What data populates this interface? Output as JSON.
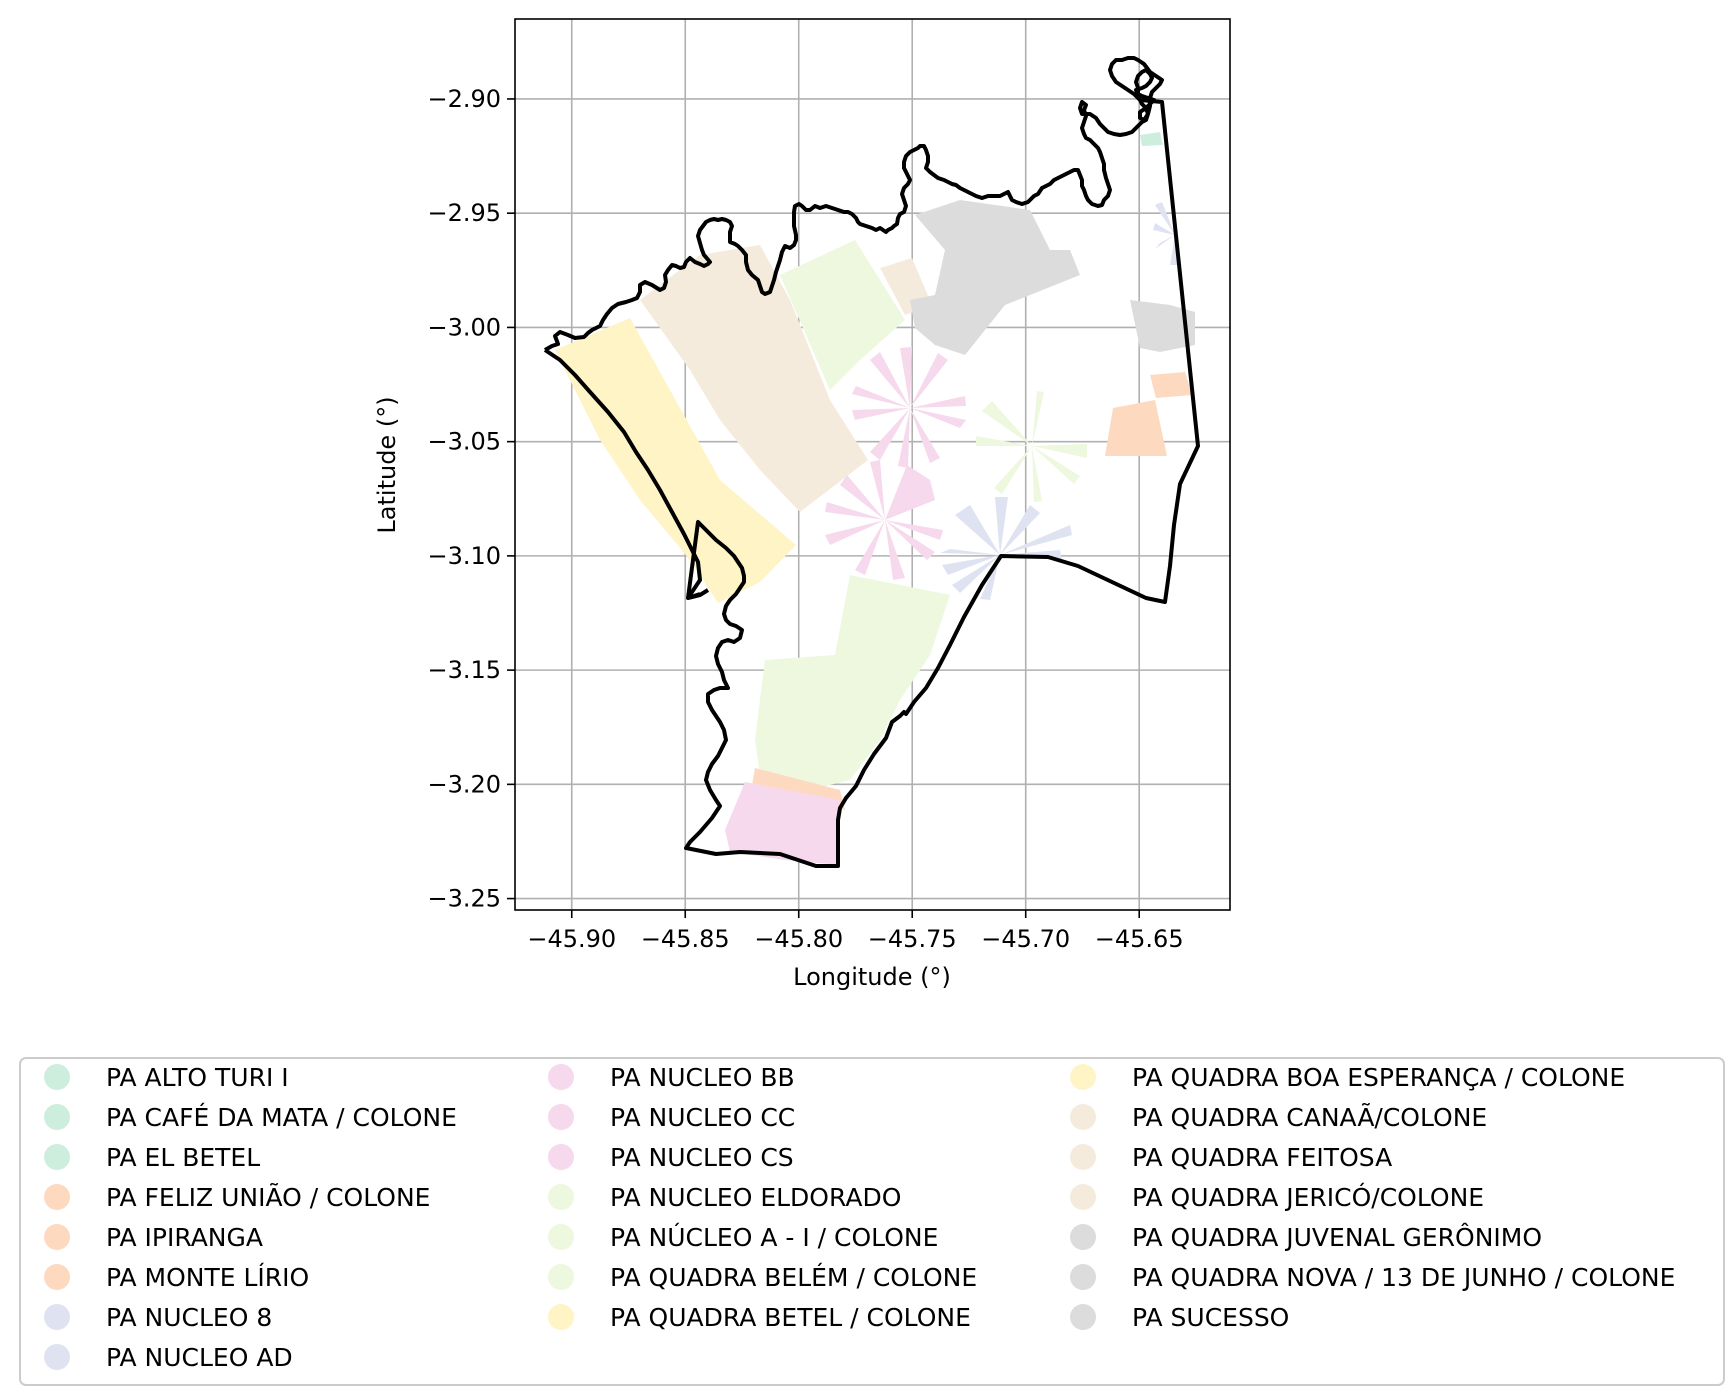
{
  "axes": {
    "xlabel": "Longitude (°)",
    "ylabel": "Latitude (°)",
    "xlim": [
      -45.925,
      -45.61
    ],
    "ylim": [
      -3.255,
      -2.865
    ],
    "xticks": [
      {
        "value": -45.9,
        "label": "−45.90"
      },
      {
        "value": -45.85,
        "label": "−45.85"
      },
      {
        "value": -45.8,
        "label": "−45.80"
      },
      {
        "value": -45.75,
        "label": "−45.75"
      },
      {
        "value": -45.7,
        "label": "−45.70"
      },
      {
        "value": -45.65,
        "label": "−45.65"
      }
    ],
    "yticks": [
      {
        "value": -2.9,
        "label": "−2.90"
      },
      {
        "value": -2.95,
        "label": "−2.95"
      },
      {
        "value": -3.0,
        "label": "−3.00"
      },
      {
        "value": -3.05,
        "label": "−3.05"
      },
      {
        "value": -3.1,
        "label": "−3.10"
      },
      {
        "value": -3.15,
        "label": "−3.15"
      },
      {
        "value": -3.2,
        "label": "−3.20"
      },
      {
        "value": -3.25,
        "label": "−3.25"
      }
    ],
    "grid": true
  },
  "legend": {
    "placement": "below plot",
    "columns": 3,
    "items": [
      {
        "label": "PA ALTO TURI I",
        "color": "#cdeedd"
      },
      {
        "label": "PA CAFÉ DA MATA / COLONE",
        "color": "#cdeedd"
      },
      {
        "label": "PA EL BETEL",
        "color": "#cdeedd"
      },
      {
        "label": "PA FELIZ UNIÃO / COLONE",
        "color": "#fdd9bf"
      },
      {
        "label": "PA IPIRANGA",
        "color": "#fdd9bf"
      },
      {
        "label": "PA MONTE  LÍRIO",
        "color": "#fdd9bf"
      },
      {
        "label": "PA NUCLEO 8",
        "color": "#dfe3f1"
      },
      {
        "label": "PA NUCLEO AD",
        "color": "#dfe3f1"
      },
      {
        "label": "PA NUCLEO BB",
        "color": "#f6d9ec"
      },
      {
        "label": "PA NUCLEO CC",
        "color": "#f6d9ec"
      },
      {
        "label": "PA NUCLEO CS",
        "color": "#f6d9ec"
      },
      {
        "label": "PA NUCLEO ELDORADO",
        "color": "#edf8de"
      },
      {
        "label": "PA NÚCLEO A - I  / COLONE",
        "color": "#edf8de"
      },
      {
        "label": "PA QUADRA BELÉM / COLONE",
        "color": "#edf8de"
      },
      {
        "label": "PA QUADRA BETEL / COLONE",
        "color": "#fff4c6"
      },
      {
        "label": "PA QUADRA BOA ESPERANÇA / COLONE",
        "color": "#fff4c6"
      },
      {
        "label": "PA QUADRA CANAÃ/COLONE",
        "color": "#f5ebdd"
      },
      {
        "label": "PA QUADRA FEITOSA",
        "color": "#f5ebdd"
      },
      {
        "label": "PA QUADRA JERICÓ/COLONE",
        "color": "#f5ebdd"
      },
      {
        "label": "PA QUADRA JUVENAL GERÔNIMO",
        "color": "#dcdcdc"
      },
      {
        "label": "PA QUADRA NOVA / 13 DE JUNHO / COLONE",
        "color": "#dcdcdc"
      },
      {
        "label": "PA SUCESSO",
        "color": "#dcdcdc"
      }
    ]
  },
  "colors": {
    "boundary": "#000000",
    "grid": "#b0b0b0",
    "legend_frame": "#cccccc"
  }
}
